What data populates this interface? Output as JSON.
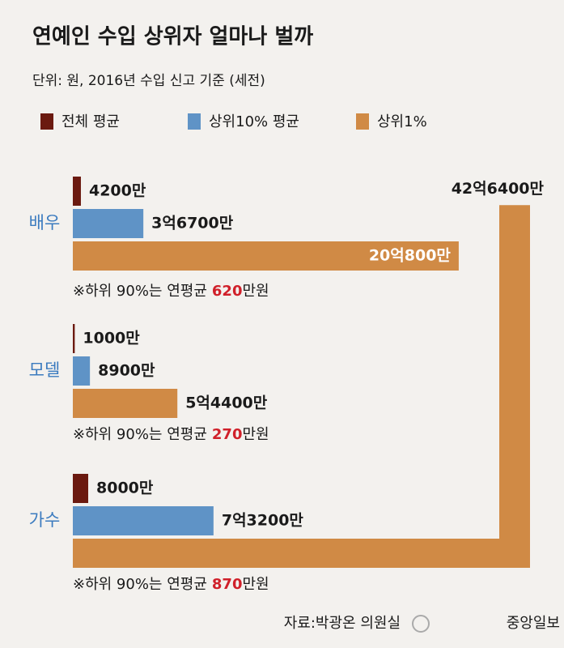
{
  "chart_data": {
    "type": "bar",
    "title": "연예인 수입 상위자 얼마나 벌까",
    "subtitle": "단위: 원, 2016년 수입 신고 기준 (세전)",
    "categories": [
      "배우",
      "모델",
      "가수"
    ],
    "series": [
      {
        "name": "전체 평균",
        "color": "#6b1a10",
        "values": [
          4200,
          1000,
          8000
        ],
        "value_labels": [
          "4200만",
          "1000만",
          "8000만"
        ]
      },
      {
        "name": "상위10% 평균",
        "color": "#5f93c6",
        "values": [
          36700,
          8900,
          73200
        ],
        "value_labels": [
          "3억6700만",
          "8900만",
          "7억3200만"
        ]
      },
      {
        "name": "상위1%",
        "color": "#d08a45",
        "values": [
          200800,
          54400,
          426400
        ],
        "value_labels": [
          "20억800만",
          "5억4400만",
          "42억6400만"
        ]
      }
    ],
    "bottom90": {
      "label": "※하위 90%는 연평균",
      "values": [
        620,
        270,
        870
      ],
      "unit": "만원"
    },
    "source": "자료:박광온 의원실",
    "logo": "중앙일보"
  }
}
